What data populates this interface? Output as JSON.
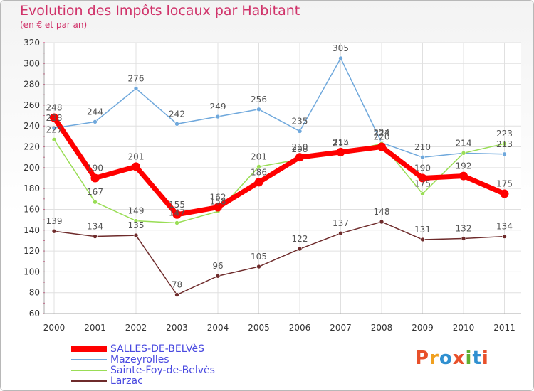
{
  "header": {
    "title": "Evolution des Impôts locaux par Habitant",
    "subtitle": "(en € et par an)"
  },
  "logo": {
    "text": "Proxiti",
    "colors": [
      "#e8502a",
      "#f0a020",
      "#3090d0",
      "#e8502a",
      "#60b030",
      "#3090d0",
      "#e8502a"
    ]
  },
  "chart_data": {
    "type": "line",
    "title": "Evolution des Impôts locaux par Habitant",
    "subtitle": "(en € et par an)",
    "x": [
      "2000",
      "2001",
      "2002",
      "2003",
      "2004",
      "2005",
      "2006",
      "2007",
      "2008",
      "2009",
      "2010",
      "2011"
    ],
    "ylim": [
      60,
      320
    ],
    "yticks": [
      60,
      80,
      100,
      120,
      140,
      160,
      180,
      200,
      220,
      240,
      260,
      280,
      300,
      320
    ],
    "grid": true,
    "legend": "bottom-left",
    "series": [
      {
        "name": "SALLES-DE-BELVèS",
        "color": "#ff0000",
        "width": 7,
        "values": [
          248,
          190,
          201,
          155,
          162,
          186,
          210,
          215,
          220,
          190,
          192,
          175
        ]
      },
      {
        "name": "Mazeyrolles",
        "color": "#6fa8dc",
        "width": 1.5,
        "values": [
          238,
          244,
          276,
          242,
          249,
          256,
          235,
          305,
          224,
          210,
          214,
          213
        ]
      },
      {
        "name": "Sainte-Foy-de-Belvès",
        "color": "#99dd55",
        "width": 1.5,
        "values": [
          227,
          167,
          149,
          147,
          158,
          201,
          208,
          214,
          223,
          175,
          214,
          223
        ]
      },
      {
        "name": "Larzac",
        "color": "#6e2b2b",
        "width": 1.5,
        "values": [
          139,
          134,
          135,
          78,
          96,
          105,
          122,
          137,
          148,
          131,
          132,
          134
        ]
      }
    ]
  }
}
